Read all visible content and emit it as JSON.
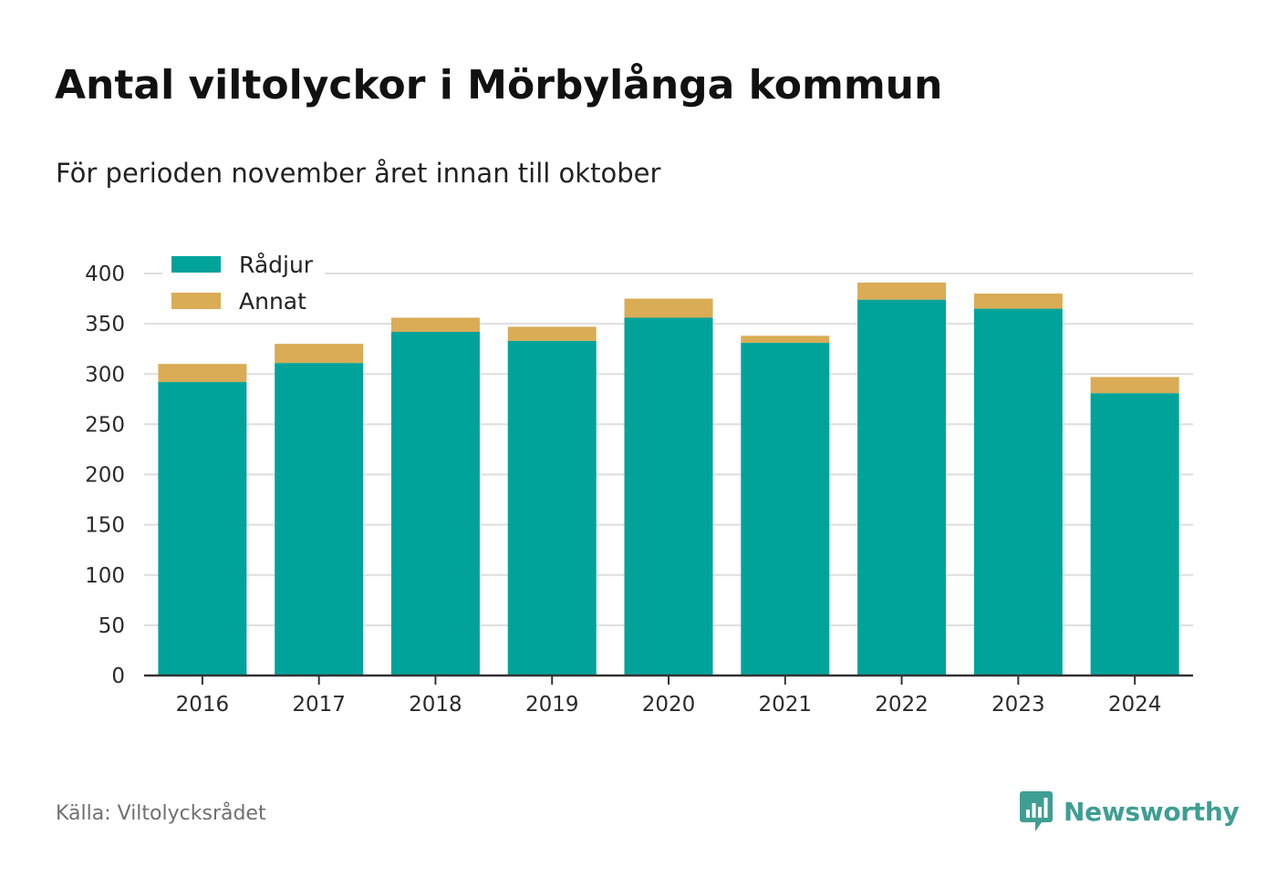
{
  "title": "Antal viltolyckor i Mörbylånga kommun",
  "subtitle": "För perioden november året innan till oktober",
  "source": "Källa: Viltolycksrådet",
  "brand": {
    "name": "Newsworthy",
    "icon": "bar-chart-speech-bubble-icon",
    "color": "#3f9e93"
  },
  "chart_data": {
    "type": "bar",
    "stacked": true,
    "categories": [
      "2016",
      "2017",
      "2018",
      "2019",
      "2020",
      "2021",
      "2022",
      "2023",
      "2024"
    ],
    "series": [
      {
        "name": "Rådjur",
        "color": "#00a39a",
        "values": [
          292,
          311,
          342,
          333,
          356,
          331,
          374,
          365,
          281
        ]
      },
      {
        "name": "Annat",
        "color": "#d9ac55",
        "values": [
          18,
          19,
          14,
          14,
          19,
          7,
          17,
          15,
          16
        ]
      }
    ],
    "ylim": [
      0,
      400
    ],
    "yticks": [
      "0",
      "50",
      "100",
      "150",
      "200",
      "250",
      "300",
      "350",
      "400"
    ],
    "grid": true,
    "legend_position": "top-left",
    "xlabel": "",
    "ylabel": ""
  }
}
